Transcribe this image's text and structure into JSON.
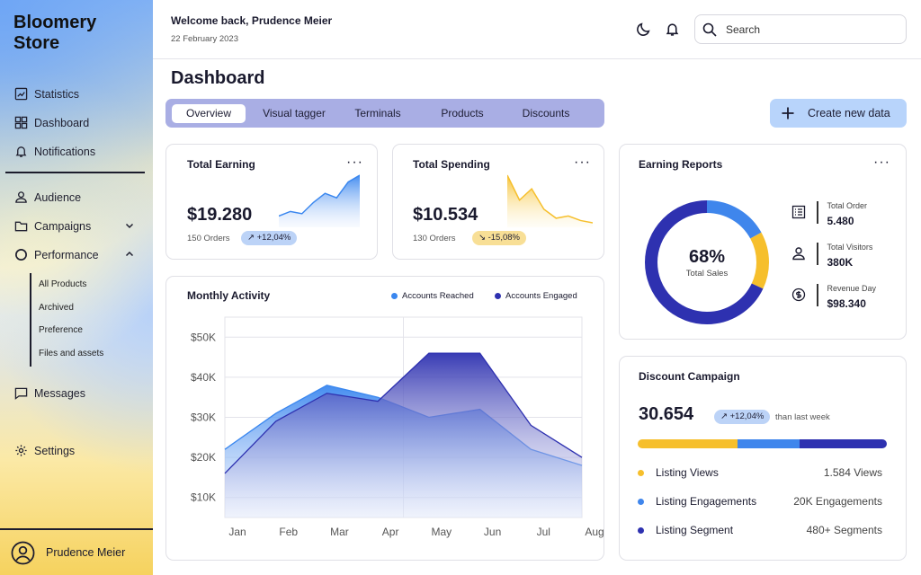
{
  "brand": {
    "line1": "Bloomery",
    "line2": "Store"
  },
  "sidebar": {
    "items": [
      {
        "label": "Statistics",
        "icon": "chart-icon"
      },
      {
        "label": "Dashboard",
        "icon": "grid-icon"
      },
      {
        "label": "Notifications",
        "icon": "bell-icon"
      },
      {
        "label": "Audience",
        "icon": "user-icon"
      },
      {
        "label": "Campaigns",
        "icon": "folder-icon"
      },
      {
        "label": "Performance",
        "icon": "circle-icon"
      },
      {
        "label": "Messages",
        "icon": "message-icon"
      },
      {
        "label": "Settings",
        "icon": "gear-icon"
      }
    ],
    "subitems": [
      "All Products",
      "Archived",
      "Preference",
      "Files and assets"
    ],
    "user_name": "Prudence Meier"
  },
  "header": {
    "welcome": "Welcome back, Prudence Meier",
    "date": "22 February 2023",
    "search_placeholder": "Search"
  },
  "page": {
    "title": "Dashboard"
  },
  "tabs": [
    "Overview",
    "Visual tagger",
    "Terminals",
    "Products",
    "Discounts"
  ],
  "active_tab": "Overview",
  "create_button": "Create new data",
  "earning": {
    "title": "Total Earning",
    "value": "$19.280",
    "orders": "150 Orders",
    "change": "+12,04%",
    "sparkline": [
      10,
      14,
      12,
      22,
      30,
      26,
      40,
      46
    ]
  },
  "spending": {
    "title": "Total Spending",
    "value": "$10.534",
    "orders": "130 Orders",
    "change": "-15,08%",
    "sparkline": [
      46,
      24,
      34,
      16,
      8,
      10,
      6,
      4
    ]
  },
  "earning_reports": {
    "title": "Earning Reports",
    "percent": "68%",
    "caption": "Total Sales",
    "stats": [
      {
        "label": "Total Order",
        "value": "5.480",
        "icon": "list-icon"
      },
      {
        "label": "Total Visitors",
        "value": "380K",
        "icon": "person-icon"
      },
      {
        "label": "Revenue Day",
        "value": "$98.340",
        "icon": "dollar-icon"
      }
    ],
    "segments": [
      {
        "name": "dark",
        "fraction": 0.68,
        "color": "#2e31b0"
      },
      {
        "name": "blue",
        "fraction": 0.17,
        "color": "#3f86ec"
      },
      {
        "name": "yellow",
        "fraction": 0.15,
        "color": "#f6bf2c"
      }
    ]
  },
  "monthly_activity": {
    "title": "Monthly Activity",
    "chart_data": {
      "type": "area",
      "categories": [
        "Jan",
        "Feb",
        "Mar",
        "Apr",
        "May",
        "Jun",
        "Jul",
        "Aug"
      ],
      "series": [
        {
          "name": "Accounts Reached",
          "color": "#3a87ef",
          "values": [
            22000,
            31000,
            38000,
            35000,
            30000,
            32000,
            22000,
            18000
          ]
        },
        {
          "name": "Accounts Engaged",
          "color": "#2e31b0",
          "values": [
            16000,
            29000,
            36000,
            34000,
            46000,
            46000,
            28000,
            20000
          ]
        }
      ],
      "yticks": [
        "$50K",
        "$40K",
        "$30K",
        "$20K",
        "$10K"
      ],
      "ylim": [
        5000,
        55000
      ]
    }
  },
  "discount": {
    "title": "Discount Campaign",
    "value": "30.654",
    "change": "+12,04%",
    "period": "than last week",
    "progress": [
      {
        "name": "yellow",
        "fraction": 0.4,
        "color": "#f6bf2c"
      },
      {
        "name": "blue",
        "fraction": 0.25,
        "color": "#3f86ec"
      },
      {
        "name": "dark",
        "fraction": 0.35,
        "color": "#2e31b0"
      }
    ],
    "rows": [
      {
        "label": "Listing Views",
        "value": "1.584 Views",
        "color": "#f6bf2c"
      },
      {
        "label": "Listing Engagements",
        "value": "20K Engagements",
        "color": "#3f86ec"
      },
      {
        "label": "Listing Segment",
        "value": "480+ Segments",
        "color": "#2e31b0"
      }
    ]
  }
}
